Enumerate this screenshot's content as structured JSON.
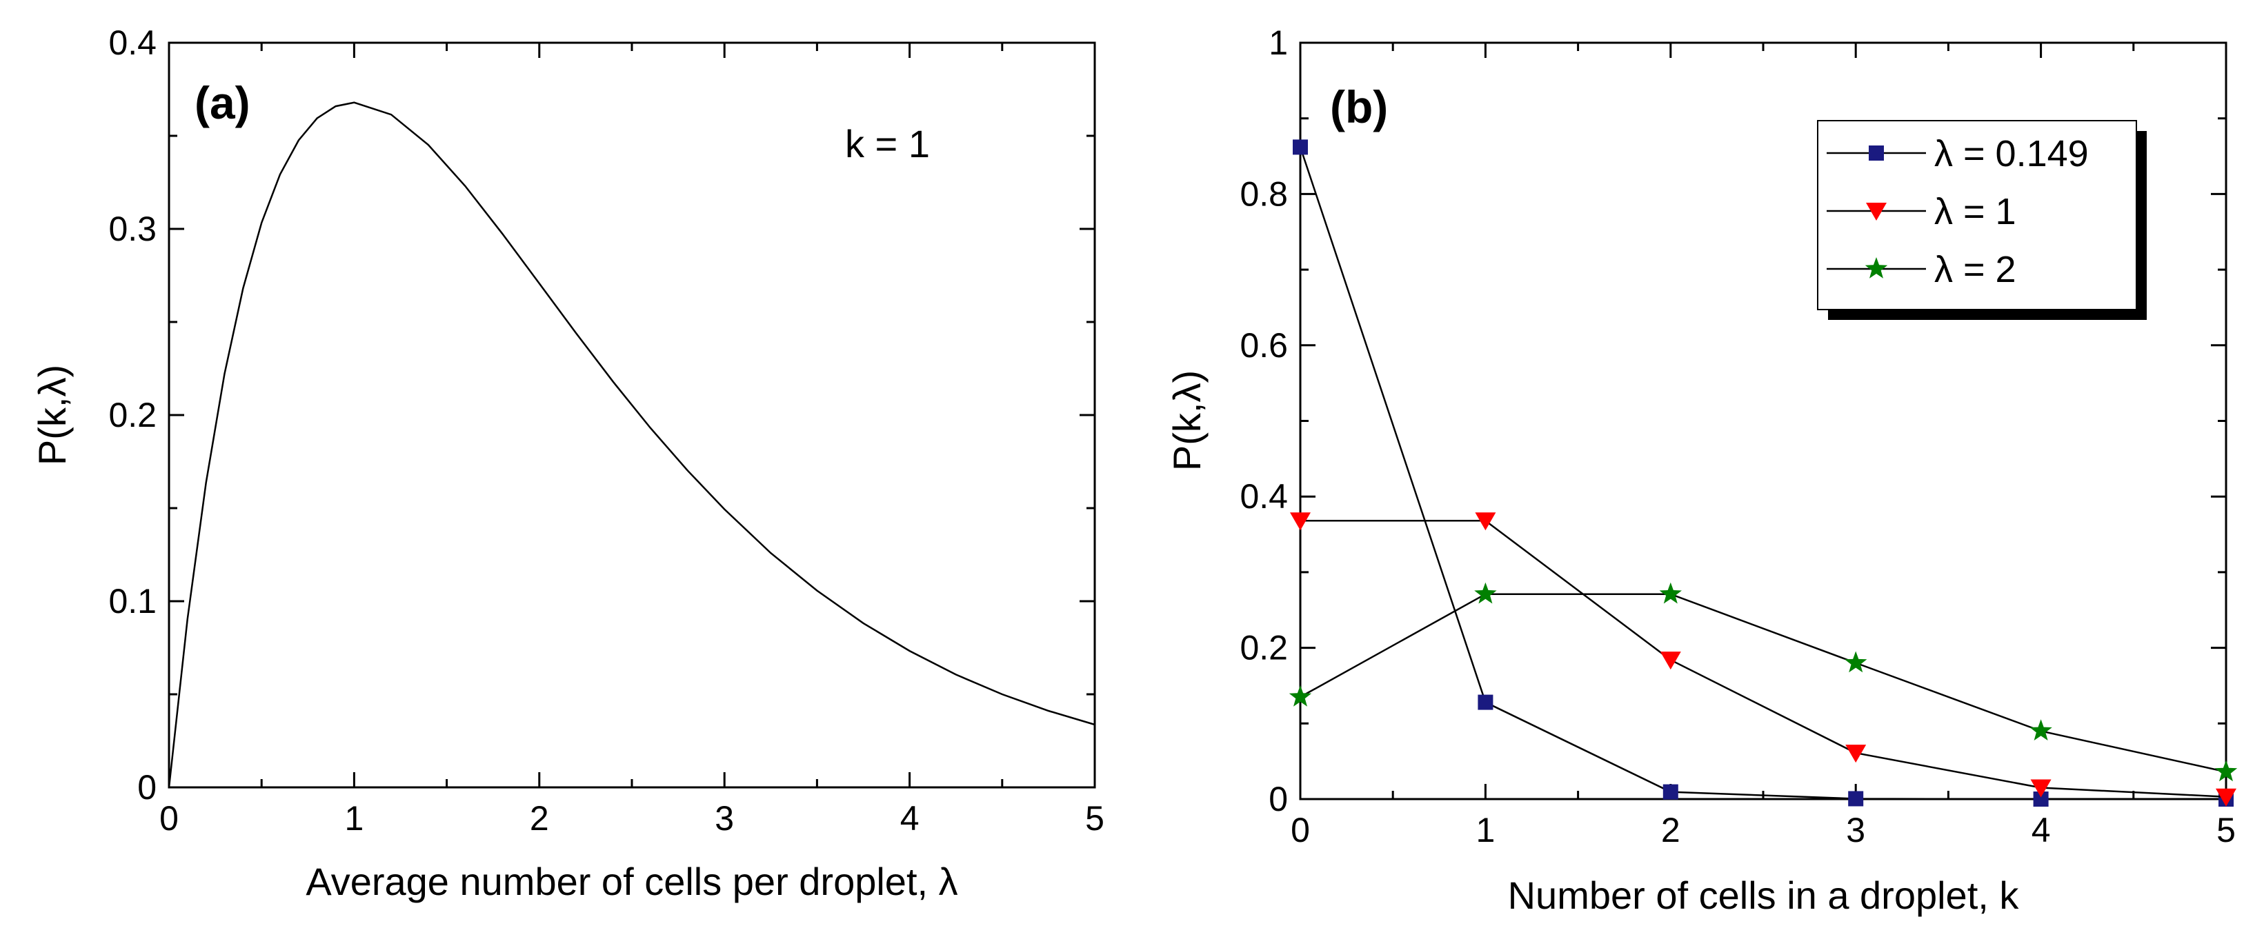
{
  "chart_data": [
    {
      "type": "line",
      "panel_label": "(a)",
      "annotation": "k = 1",
      "xlabel": "Average number of cells per droplet, λ",
      "ylabel": "P(k,λ)",
      "xlim": [
        0,
        5
      ],
      "ylim": [
        0,
        0.4
      ],
      "x_ticks": [
        "0",
        "1",
        "2",
        "3",
        "4",
        "5"
      ],
      "y_ticks": [
        "0",
        "0.1",
        "0.2",
        "0.3",
        "0.4"
      ],
      "series": [
        {
          "name": "k = 1",
          "function": "λ·e^(−λ)",
          "x": [
            0,
            0.1,
            0.2,
            0.3,
            0.4,
            0.5,
            0.6,
            0.7,
            0.8,
            0.9,
            1.0,
            1.2,
            1.4,
            1.6,
            1.8,
            2.0,
            2.2,
            2.4,
            2.6,
            2.8,
            3.0,
            3.25,
            3.5,
            3.75,
            4.0,
            4.25,
            4.5,
            4.75,
            5.0
          ],
          "y": [
            0,
            0.0905,
            0.1637,
            0.2222,
            0.2681,
            0.3033,
            0.3293,
            0.3476,
            0.3595,
            0.3659,
            0.3679,
            0.3614,
            0.3452,
            0.323,
            0.2975,
            0.2707,
            0.2438,
            0.2177,
            0.1931,
            0.1703,
            0.1494,
            0.1259,
            0.1057,
            0.0882,
            0.0733,
            0.0606,
            0.05,
            0.0411,
            0.0337
          ]
        }
      ]
    },
    {
      "type": "line",
      "panel_label": "(b)",
      "xlabel": "Number of cells in a droplet, k",
      "ylabel": "P(k,λ)",
      "xlim": [
        0,
        5
      ],
      "ylim": [
        0,
        1
      ],
      "x_ticks": [
        "0",
        "1",
        "2",
        "3",
        "4",
        "5"
      ],
      "y_ticks": [
        "0",
        "0.2",
        "0.4",
        "0.6",
        "0.8",
        "1"
      ],
      "categories": [
        0,
        1,
        2,
        3,
        4,
        5
      ],
      "legend_position": "top-right",
      "series": [
        {
          "name": "λ = 0.149",
          "color": "#1a1a80",
          "marker": "square",
          "values": [
            0.862,
            0.128,
            0.0095,
            0.0005,
            0.0,
            0.0
          ]
        },
        {
          "name": "λ = 1",
          "color": "#ff0000",
          "marker": "triangle-down",
          "values": [
            0.368,
            0.368,
            0.184,
            0.061,
            0.015,
            0.003
          ]
        },
        {
          "name": "λ = 2",
          "color": "#008000",
          "marker": "star",
          "values": [
            0.135,
            0.271,
            0.271,
            0.18,
            0.09,
            0.036
          ]
        }
      ]
    }
  ]
}
